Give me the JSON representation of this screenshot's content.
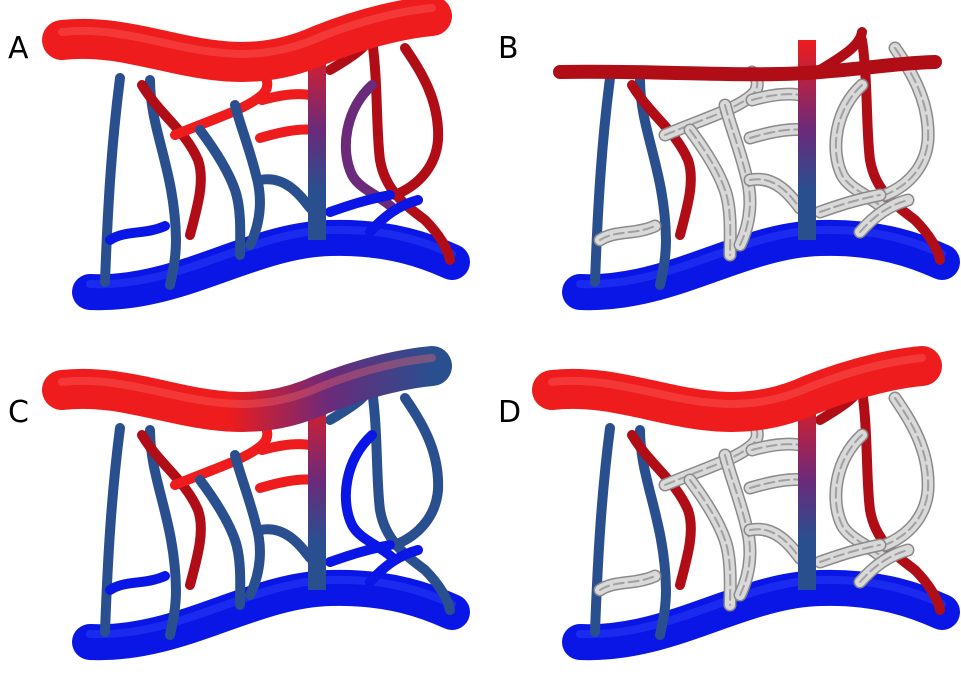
{
  "panels": [
    {
      "label": "A",
      "mode": "normal"
    },
    {
      "label": "B",
      "mode": "flat-artery-gray-vessels"
    },
    {
      "label": "C",
      "mode": "gradient-artery"
    },
    {
      "label": "D",
      "mode": "gray-vessels"
    }
  ],
  "colors": {
    "artery_red": "#ee1c1c",
    "artery_dark": "#b00d17",
    "vein_blue": "#0a16e6",
    "vessel_steel": "#2a4f8f",
    "vessel_purple": "#6b2a7a",
    "gray_vessel": "#d9d9d9",
    "gray_outline": "#8a8a8a"
  }
}
